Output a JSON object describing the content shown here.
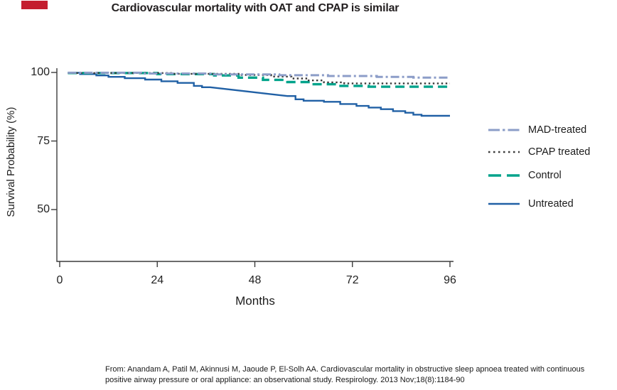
{
  "slide": {
    "title": "Cardiovascular mortality with OAT and CPAP is similar",
    "accent_color": "#C41E2F"
  },
  "chart_data": {
    "type": "line",
    "subtype": "kaplan-meier-step",
    "title": "Cardiovascular mortality with OAT and CPAP is similar",
    "xlabel": "Months",
    "ylabel": "Survival Probability (%)",
    "xlim": [
      0,
      96
    ],
    "ylim": [
      31,
      103
    ],
    "x_ticks": [
      0,
      24,
      48,
      72,
      96
    ],
    "y_ticks": [
      100,
      75,
      50
    ],
    "grid": false,
    "legend_position": "right",
    "axis_color": "#3b3b3b",
    "series": [
      {
        "name": "Untreated",
        "color": "#2060A5",
        "style": "solid",
        "width": 2.4,
        "points": [
          [
            2,
            99.9
          ],
          [
            5,
            99.9
          ],
          [
            5,
            99.4
          ],
          [
            9,
            99.4
          ],
          [
            9,
            98.9
          ],
          [
            12,
            98.9
          ],
          [
            12,
            98.4
          ],
          [
            16,
            98.4
          ],
          [
            16,
            97.9
          ],
          [
            21,
            97.9
          ],
          [
            21,
            97.4
          ],
          [
            25,
            97.4
          ],
          [
            25,
            96.8
          ],
          [
            29,
            96.8
          ],
          [
            29,
            96.2
          ],
          [
            33,
            96.2
          ],
          [
            33,
            95.1
          ],
          [
            35,
            95.1
          ],
          [
            35,
            94.6
          ],
          [
            37,
            94.6
          ],
          [
            56,
            91.4
          ],
          [
            58,
            91.4
          ],
          [
            58,
            90.2
          ],
          [
            60,
            90.2
          ],
          [
            60,
            89.7
          ],
          [
            65,
            89.7
          ],
          [
            65,
            89.3
          ],
          [
            69,
            89.3
          ],
          [
            69,
            88.5
          ],
          [
            73,
            88.5
          ],
          [
            73,
            87.8
          ],
          [
            76,
            87.8
          ],
          [
            76,
            87.2
          ],
          [
            79,
            87.2
          ],
          [
            79,
            86.6
          ],
          [
            82,
            86.6
          ],
          [
            82,
            85.9
          ],
          [
            85,
            85.9
          ],
          [
            85,
            85.3
          ],
          [
            87,
            85.3
          ],
          [
            87,
            84.6
          ],
          [
            89,
            84.6
          ],
          [
            89,
            84.2
          ],
          [
            96,
            84.2
          ]
        ]
      },
      {
        "name": "Control",
        "color": "#00A38B",
        "style": "dashed",
        "width": 3.4,
        "points": [
          [
            2,
            99.8
          ],
          [
            24,
            99.8
          ],
          [
            24,
            99.4
          ],
          [
            38,
            99.4
          ],
          [
            38,
            98.9
          ],
          [
            44,
            98.9
          ],
          [
            44,
            98.1
          ],
          [
            50,
            98.1
          ],
          [
            50,
            97.3
          ],
          [
            56,
            97.3
          ],
          [
            56,
            96.5
          ],
          [
            62,
            96.5
          ],
          [
            62,
            95.7
          ],
          [
            68,
            95.7
          ],
          [
            68,
            95.1
          ],
          [
            76,
            95.1
          ],
          [
            76,
            94.8
          ],
          [
            96,
            94.8
          ]
        ]
      },
      {
        "name": "CPAP treated",
        "color": "#3A3A3A",
        "style": "dotted",
        "width": 2.4,
        "points": [
          [
            2,
            99.8
          ],
          [
            28,
            99.8
          ],
          [
            28,
            99.5
          ],
          [
            44,
            99.5
          ],
          [
            44,
            99.1
          ],
          [
            52,
            99.1
          ],
          [
            52,
            98.5
          ],
          [
            57,
            98.5
          ],
          [
            57,
            97.8
          ],
          [
            61,
            97.8
          ],
          [
            61,
            97.1
          ],
          [
            65,
            97.1
          ],
          [
            65,
            96.4
          ],
          [
            70,
            96.4
          ],
          [
            70,
            96.0
          ],
          [
            96,
            96.0
          ]
        ]
      },
      {
        "name": "MAD-treated",
        "color": "#8C9DC8",
        "style": "dash-dot",
        "width": 3.0,
        "points": [
          [
            2,
            99.9
          ],
          [
            20,
            99.9
          ],
          [
            20,
            99.6
          ],
          [
            38,
            99.6
          ],
          [
            38,
            99.3
          ],
          [
            54,
            99.3
          ],
          [
            54,
            99.0
          ],
          [
            66,
            99.0
          ],
          [
            66,
            98.7
          ],
          [
            78,
            98.7
          ],
          [
            78,
            98.4
          ],
          [
            87,
            98.4
          ],
          [
            87,
            98.1
          ],
          [
            96,
            98.1
          ]
        ]
      }
    ],
    "legend_order": [
      "MAD-treated",
      "CPAP treated",
      "Control",
      "Untreated"
    ]
  },
  "citation": {
    "line1": "From: Anandam A, Patil M, Akinnusi M, Jaoude P, El-Solh AA. Cardiovascular mortality in obstructive sleep apnoea treated with continuous",
    "line2": "positive airway pressure or oral appliance: an observational study. Respirology. 2013 Nov;18(8):1184-90"
  }
}
